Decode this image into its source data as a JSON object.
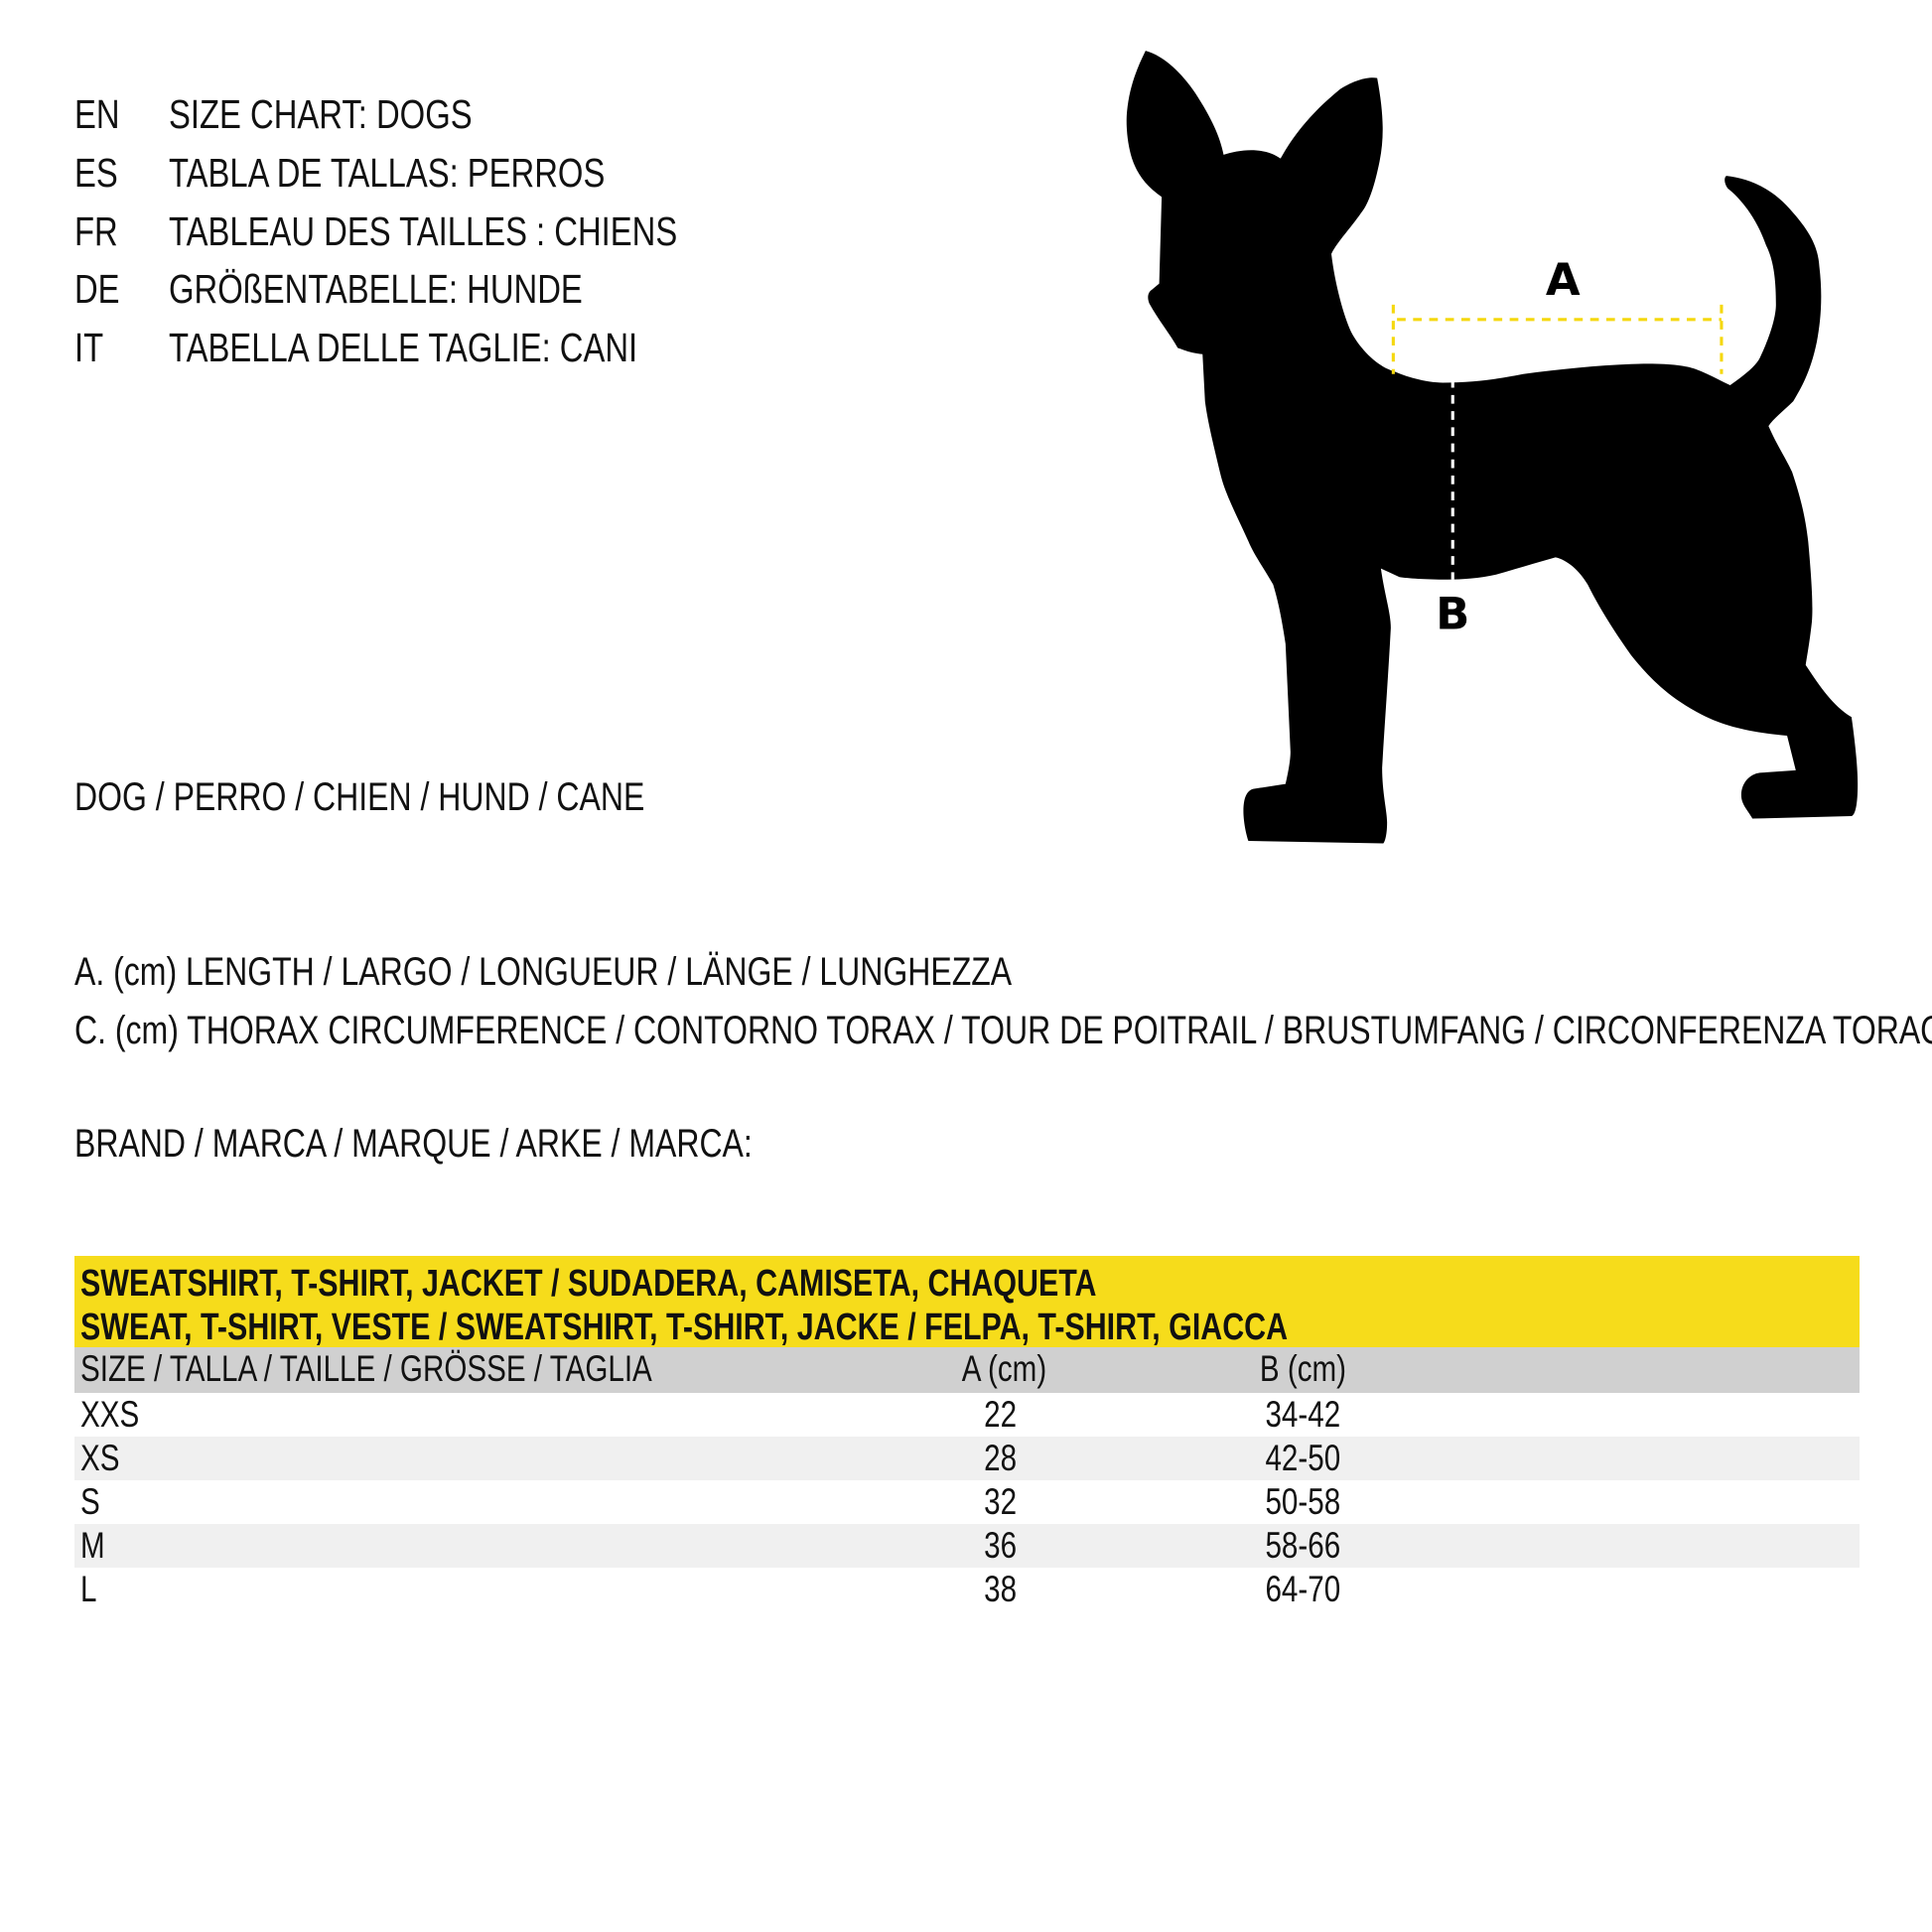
{
  "titles": [
    {
      "code": "EN",
      "text": "SIZE CHART: DOGS"
    },
    {
      "code": "ES",
      "text": "TABLA DE TALLAS: PERROS"
    },
    {
      "code": "FR",
      "text": "TABLEAU DES TAILLES : CHIENS"
    },
    {
      "code": "DE",
      "text": "GRÖßENTABELLE: HUNDE"
    },
    {
      "code": "IT",
      "text": "TABELLA DELLE TAGLIE: CANI"
    }
  ],
  "animal_line": "DOG / PERRO / CHIEN / HUND / CANE",
  "measure_a": "A. (cm) LENGTH / LARGO / LONGUEUR / LÄNGE / LUNGHEZZA",
  "measure_c": "C. (cm) THORAX CIRCUMFERENCE / CONTORNO TORAX / TOUR DE POITRAIL / BRUSTUMFANG / CIRCONFERENZA TORACE",
  "brand_line": "BRAND / MARCA / MARQUE / ARKE / MARCA:",
  "diagram": {
    "label_a": "A",
    "label_b": "B",
    "accent_color": "#f5d80f"
  },
  "table": {
    "title_line1": "SWEATSHIRT, T-SHIRT, JACKET / SUDADERA, CAMISETA, CHAQUETA",
    "title_line2": "SWEAT, T-SHIRT, VESTE / SWEATSHIRT, T-SHIRT, JACKE / FELPA, T-SHIRT, GIACCA",
    "header_color": "#f6dc1b",
    "columns": [
      "SIZE / TALLA / TAILLE / GRÖSSE / TAGLIA",
      "A (cm)",
      "B (cm)"
    ],
    "rows": [
      {
        "size": "XXS",
        "a": "22",
        "b": "34-42"
      },
      {
        "size": "XS",
        "a": "28",
        "b": "42-50"
      },
      {
        "size": "S",
        "a": "32",
        "b": "50-58"
      },
      {
        "size": "M",
        "a": "36",
        "b": "58-66"
      },
      {
        "size": "L",
        "a": "38",
        "b": "64-70"
      }
    ]
  }
}
